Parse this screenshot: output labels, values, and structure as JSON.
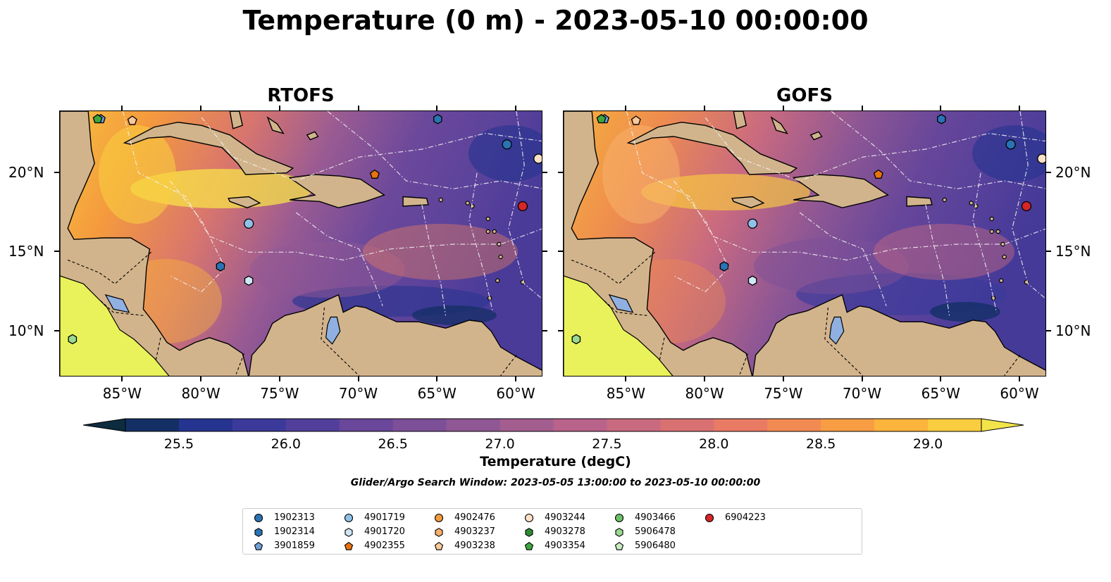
{
  "title": "Temperature (0 m) - 2023-05-10 00:00:00",
  "panels": [
    {
      "title": "RTOFS"
    },
    {
      "title": "GOFS"
    }
  ],
  "x_ticks": [
    "85°W",
    "80°W",
    "75°W",
    "70°W",
    "65°W",
    "60°W"
  ],
  "x_tick_values": [
    -85,
    -80,
    -75,
    -70,
    -65,
    -60
  ],
  "y_ticks": [
    "20°N",
    "15°N",
    "10°N"
  ],
  "y_tick_values": [
    20,
    15,
    10
  ],
  "extent": {
    "lon": [
      -89,
      -58.3
    ],
    "lat": [
      7.1,
      23.9
    ]
  },
  "colorbar": {
    "label": "Temperature (degC)",
    "ticks": [
      "25.5",
      "26.0",
      "26.5",
      "27.0",
      "27.5",
      "28.0",
      "28.5",
      "29.0"
    ],
    "tick_values": [
      25.5,
      26.0,
      26.5,
      27.0,
      27.5,
      28.0,
      28.5,
      29.0
    ],
    "range": [
      25.25,
      29.25
    ],
    "colors": [
      "#0d2c3f",
      "#142f66",
      "#25348f",
      "#3b3a9b",
      "#523f9c",
      "#6a479a",
      "#7c4f98",
      "#8f5794",
      "#a45d8f",
      "#b9628a",
      "#c96a80",
      "#d97173",
      "#e97b65",
      "#f28b52",
      "#f99d45",
      "#fbb43c",
      "#f9cd3f",
      "#f2e54a"
    ],
    "extend": "both"
  },
  "search_window": "Glider/Argo Search Window: 2023-05-05 13:00:00 to 2023-05-10 00:00:00",
  "legend": [
    {
      "label": "1902313",
      "marker": "circle",
      "color": "#2a73b4"
    },
    {
      "label": "1902314",
      "marker": "hexagon",
      "color": "#2a73b4"
    },
    {
      "label": "3901859",
      "marker": "pentagon",
      "color": "#6f9fd8"
    },
    {
      "label": "4901719",
      "marker": "circle",
      "color": "#8fc2e8"
    },
    {
      "label": "4901720",
      "marker": "hexagon",
      "color": "#cfe8f5"
    },
    {
      "label": "4902355",
      "marker": "pentagon",
      "color": "#e8730f"
    },
    {
      "label": "4902476",
      "marker": "circle",
      "color": "#f49a3e"
    },
    {
      "label": "4903237",
      "marker": "hexagon",
      "color": "#f7b06a"
    },
    {
      "label": "4903238",
      "marker": "pentagon",
      "color": "#f9c99a"
    },
    {
      "label": "4903244",
      "marker": "circle",
      "color": "#fbe2c6"
    },
    {
      "label": "4903278",
      "marker": "hexagon",
      "color": "#2e8b34"
    },
    {
      "label": "4903354",
      "marker": "pentagon",
      "color": "#3ea63f"
    },
    {
      "label": "4903466",
      "marker": "circle",
      "color": "#6cc167"
    },
    {
      "label": "5906478",
      "marker": "hexagon",
      "color": "#9ad98f"
    },
    {
      "label": "5906480",
      "marker": "pentagon",
      "color": "#c7ecc0"
    },
    {
      "label": "6904223",
      "marker": "circle",
      "color": "#d62627"
    }
  ],
  "floats": [
    {
      "id": "3901859",
      "lon": -86.4,
      "lat": 23.4
    },
    {
      "id": "4903238",
      "lon": -84.4,
      "lat": 23.3
    },
    {
      "id": "4903354",
      "lon": -86.6,
      "lat": 23.4
    },
    {
      "id": "1902314",
      "lon": -65.0,
      "lat": 23.4
    },
    {
      "id": "1902313",
      "lon": -60.6,
      "lat": 21.8
    },
    {
      "id": "4903244",
      "lon": -58.6,
      "lat": 20.9
    },
    {
      "id": "4902355",
      "lon": -69.0,
      "lat": 19.9
    },
    {
      "id": "6904223",
      "lon": -59.6,
      "lat": 17.9
    },
    {
      "id": "4901719",
      "lon": -77.0,
      "lat": 16.8
    },
    {
      "id": "1902314",
      "lon": -78.8,
      "lat": 14.1
    },
    {
      "id": "4901720",
      "lon": -77.0,
      "lat": 13.2
    },
    {
      "id": "5906478",
      "lon": -88.2,
      "lat": 9.5
    }
  ]
}
